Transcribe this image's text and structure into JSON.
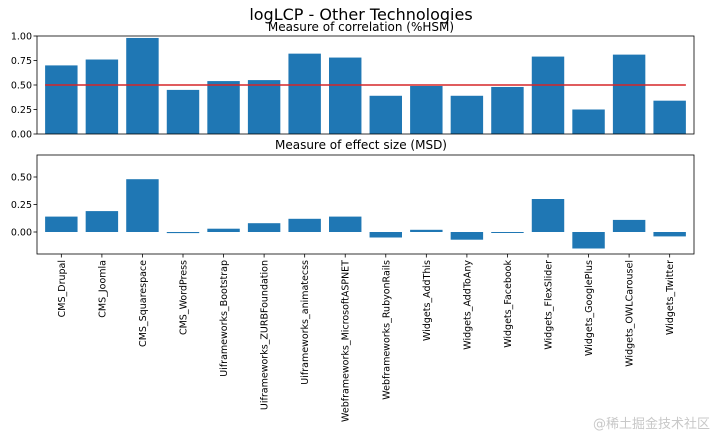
{
  "figure_title": "logLCP - Other Technologies",
  "watermark": "@稀土掘金技术社区",
  "chart_data": [
    {
      "type": "bar",
      "title": "Measure of correlation (%HSM)",
      "categories": [
        "CMS_Drupal",
        "CMS_Joomla",
        "CMS_Squarespace",
        "CMS_WordPress",
        "Uiframeworks_Bootstrap",
        "Uiframeworks_ZURBFoundation",
        "Uiframeworks_animatecss",
        "Webframeworks_MicrosoftASPNET",
        "Webframeworks_RubyonRails",
        "Widgets_AddThis",
        "Widgets_AddToAny",
        "Widgets_Facebook",
        "Widgets_FlexSlider",
        "Widgets_GooglePlus",
        "Widgets_OWLCarousel",
        "Widgets_Twitter"
      ],
      "values": [
        0.7,
        0.76,
        0.98,
        0.45,
        0.54,
        0.55,
        0.82,
        0.78,
        0.39,
        0.49,
        0.39,
        0.48,
        0.79,
        0.25,
        0.81,
        0.34
      ],
      "reference_line": 0.5,
      "ylim": [
        0,
        1.0
      ],
      "yticks": [
        0.0,
        0.25,
        0.5,
        0.75,
        1.0
      ],
      "bar_color": "#1f77b4",
      "line_color": "#d62728"
    },
    {
      "type": "bar",
      "title": "Measure of effect size (MSD)",
      "categories": [
        "CMS_Drupal",
        "CMS_Joomla",
        "CMS_Squarespace",
        "CMS_WordPress",
        "Uiframeworks_Bootstrap",
        "Uiframeworks_ZURBFoundation",
        "Uiframeworks_animatecss",
        "Webframeworks_MicrosoftASPNET",
        "Webframeworks_RubyonRails",
        "Widgets_AddThis",
        "Widgets_AddToAny",
        "Widgets_Facebook",
        "Widgets_FlexSlider",
        "Widgets_GooglePlus",
        "Widgets_OWLCarousel",
        "Widgets_Twitter"
      ],
      "values": [
        0.14,
        0.19,
        0.48,
        -0.01,
        0.03,
        0.08,
        0.12,
        0.14,
        -0.05,
        0.02,
        -0.07,
        0.0,
        0.3,
        -0.15,
        0.11,
        -0.04
      ],
      "ylim": [
        -0.2,
        0.7
      ],
      "yticks": [
        0.0,
        0.25,
        0.5
      ],
      "bar_color": "#1f77b4"
    }
  ]
}
